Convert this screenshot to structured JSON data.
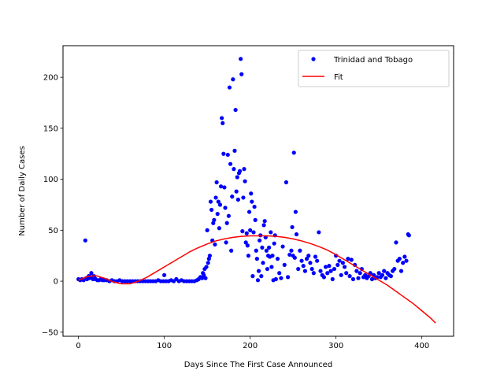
{
  "chart_data": {
    "type": "scatter",
    "xlabel": "Days Since The First Case Announced",
    "ylabel": "Number of Daily Cases",
    "xlim": [
      -18,
      437
    ],
    "ylim": [
      -54,
      231
    ],
    "xticks": [
      0,
      100,
      200,
      300,
      400
    ],
    "yticks": [
      -50,
      0,
      50,
      100,
      150,
      200
    ],
    "grid": false,
    "legend": "top-right",
    "series": [
      {
        "name": "Trinidad and Tobago",
        "kind": "markers",
        "color": "#0000ff",
        "points": [
          [
            0,
            2
          ],
          [
            2,
            1
          ],
          [
            4,
            2
          ],
          [
            6,
            1
          ],
          [
            8,
            40
          ],
          [
            9,
            3
          ],
          [
            10,
            2
          ],
          [
            12,
            5
          ],
          [
            13,
            3
          ],
          [
            14,
            4
          ],
          [
            15,
            8
          ],
          [
            16,
            3
          ],
          [
            17,
            2
          ],
          [
            18,
            5
          ],
          [
            19,
            3
          ],
          [
            20,
            2
          ],
          [
            22,
            1
          ],
          [
            24,
            1
          ],
          [
            26,
            2
          ],
          [
            28,
            1
          ],
          [
            30,
            1
          ],
          [
            33,
            1
          ],
          [
            36,
            0
          ],
          [
            39,
            1
          ],
          [
            42,
            0
          ],
          [
            45,
            0
          ],
          [
            48,
            1
          ],
          [
            51,
            0
          ],
          [
            54,
            0
          ],
          [
            57,
            0
          ],
          [
            60,
            0
          ],
          [
            63,
            0
          ],
          [
            66,
            0
          ],
          [
            69,
            0
          ],
          [
            72,
            0
          ],
          [
            75,
            0
          ],
          [
            78,
            0
          ],
          [
            81,
            0
          ],
          [
            84,
            0
          ],
          [
            87,
            0
          ],
          [
            90,
            0
          ],
          [
            93,
            1
          ],
          [
            96,
            0
          ],
          [
            99,
            0
          ],
          [
            100,
            6
          ],
          [
            102,
            0
          ],
          [
            105,
            0
          ],
          [
            108,
            1
          ],
          [
            111,
            0
          ],
          [
            114,
            2
          ],
          [
            117,
            0
          ],
          [
            120,
            1
          ],
          [
            123,
            0
          ],
          [
            126,
            0
          ],
          [
            129,
            0
          ],
          [
            132,
            0
          ],
          [
            135,
            0
          ],
          [
            138,
            1
          ],
          [
            140,
            2
          ],
          [
            142,
            4
          ],
          [
            144,
            3
          ],
          [
            145,
            8
          ],
          [
            146,
            6
          ],
          [
            147,
            12
          ],
          [
            148,
            3
          ],
          [
            149,
            14
          ],
          [
            150,
            50
          ],
          [
            151,
            18
          ],
          [
            152,
            22
          ],
          [
            153,
            25
          ],
          [
            154,
            78
          ],
          [
            155,
            70
          ],
          [
            156,
            40
          ],
          [
            157,
            57
          ],
          [
            158,
            60
          ],
          [
            159,
            36
          ],
          [
            160,
            82
          ],
          [
            161,
            97
          ],
          [
            162,
            66
          ],
          [
            163,
            78
          ],
          [
            164,
            52
          ],
          [
            165,
            75
          ],
          [
            166,
            93
          ],
          [
            167,
            160
          ],
          [
            168,
            155
          ],
          [
            169,
            125
          ],
          [
            170,
            92
          ],
          [
            171,
            72
          ],
          [
            172,
            38
          ],
          [
            173,
            57
          ],
          [
            174,
            124
          ],
          [
            175,
            64
          ],
          [
            176,
            190
          ],
          [
            177,
            115
          ],
          [
            178,
            30
          ],
          [
            179,
            83
          ],
          [
            180,
            198
          ],
          [
            181,
            110
          ],
          [
            182,
            128
          ],
          [
            183,
            168
          ],
          [
            184,
            88
          ],
          [
            185,
            102
          ],
          [
            186,
            80
          ],
          [
            187,
            106
          ],
          [
            188,
            108
          ],
          [
            189,
            218
          ],
          [
            190,
            203
          ],
          [
            191,
            49
          ],
          [
            192,
            82
          ],
          [
            193,
            110
          ],
          [
            194,
            98
          ],
          [
            195,
            38
          ],
          [
            196,
            47
          ],
          [
            197,
            35
          ],
          [
            198,
            25
          ],
          [
            199,
            68
          ],
          [
            200,
            50
          ],
          [
            201,
            86
          ],
          [
            202,
            78
          ],
          [
            203,
            5
          ],
          [
            204,
            48
          ],
          [
            205,
            73
          ],
          [
            206,
            60
          ],
          [
            207,
            30
          ],
          [
            208,
            22
          ],
          [
            209,
            1
          ],
          [
            210,
            10
          ],
          [
            211,
            40
          ],
          [
            212,
            45
          ],
          [
            213,
            5
          ],
          [
            214,
            33
          ],
          [
            215,
            18
          ],
          [
            216,
            55
          ],
          [
            217,
            59
          ],
          [
            218,
            43
          ],
          [
            219,
            30
          ],
          [
            220,
            12
          ],
          [
            221,
            25
          ],
          [
            222,
            33
          ],
          [
            223,
            24
          ],
          [
            224,
            48
          ],
          [
            225,
            14
          ],
          [
            226,
            25
          ],
          [
            227,
            1
          ],
          [
            228,
            37
          ],
          [
            229,
            45
          ],
          [
            230,
            2
          ],
          [
            232,
            22
          ],
          [
            234,
            8
          ],
          [
            236,
            3
          ],
          [
            238,
            34
          ],
          [
            240,
            16
          ],
          [
            242,
            97
          ],
          [
            244,
            4
          ],
          [
            246,
            26
          ],
          [
            248,
            30
          ],
          [
            249,
            53
          ],
          [
            250,
            25
          ],
          [
            251,
            126
          ],
          [
            252,
            23
          ],
          [
            253,
            68
          ],
          [
            254,
            46
          ],
          [
            256,
            12
          ],
          [
            258,
            30
          ],
          [
            260,
            20
          ],
          [
            262,
            15
          ],
          [
            264,
            10
          ],
          [
            266,
            22
          ],
          [
            268,
            25
          ],
          [
            270,
            18
          ],
          [
            272,
            12
          ],
          [
            274,
            8
          ],
          [
            276,
            24
          ],
          [
            278,
            20
          ],
          [
            280,
            48
          ],
          [
            282,
            10
          ],
          [
            284,
            6
          ],
          [
            286,
            4
          ],
          [
            288,
            14
          ],
          [
            290,
            8
          ],
          [
            292,
            15
          ],
          [
            294,
            10
          ],
          [
            296,
            2
          ],
          [
            298,
            12
          ],
          [
            300,
            25
          ],
          [
            302,
            16
          ],
          [
            304,
            20
          ],
          [
            306,
            6
          ],
          [
            308,
            18
          ],
          [
            310,
            14
          ],
          [
            312,
            8
          ],
          [
            314,
            22
          ],
          [
            316,
            5
          ],
          [
            318,
            21
          ],
          [
            320,
            2
          ],
          [
            322,
            16
          ],
          [
            324,
            10
          ],
          [
            326,
            3
          ],
          [
            328,
            8
          ],
          [
            330,
            12
          ],
          [
            332,
            4
          ],
          [
            334,
            6
          ],
          [
            336,
            3
          ],
          [
            338,
            5
          ],
          [
            340,
            8
          ],
          [
            342,
            2
          ],
          [
            344,
            6
          ],
          [
            346,
            3
          ],
          [
            348,
            4
          ],
          [
            350,
            8
          ],
          [
            352,
            4
          ],
          [
            354,
            6
          ],
          [
            356,
            10
          ],
          [
            358,
            3
          ],
          [
            360,
            8
          ],
          [
            362,
            6
          ],
          [
            364,
            5
          ],
          [
            366,
            10
          ],
          [
            368,
            12
          ],
          [
            370,
            38
          ],
          [
            372,
            20
          ],
          [
            374,
            22
          ],
          [
            376,
            10
          ],
          [
            378,
            18
          ],
          [
            380,
            24
          ],
          [
            382,
            20
          ],
          [
            384,
            46
          ],
          [
            385,
            45
          ]
        ]
      },
      {
        "name": "Fit",
        "kind": "line",
        "color": "#ff0000",
        "points": [
          [
            0,
            1
          ],
          [
            10,
            4.5
          ],
          [
            20,
            5.5
          ],
          [
            30,
            3
          ],
          [
            40,
            -0.5
          ],
          [
            50,
            -2.5
          ],
          [
            60,
            -2.5
          ],
          [
            70,
            0
          ],
          [
            80,
            4
          ],
          [
            90,
            9
          ],
          [
            100,
            14
          ],
          [
            110,
            19
          ],
          [
            120,
            24
          ],
          [
            130,
            29
          ],
          [
            140,
            33
          ],
          [
            150,
            36.5
          ],
          [
            160,
            39.5
          ],
          [
            170,
            41.5
          ],
          [
            180,
            43
          ],
          [
            190,
            44
          ],
          [
            200,
            44.5
          ],
          [
            210,
            44.5
          ],
          [
            220,
            44.5
          ],
          [
            230,
            44
          ],
          [
            240,
            43
          ],
          [
            250,
            41.5
          ],
          [
            260,
            39.5
          ],
          [
            270,
            37
          ],
          [
            280,
            34
          ],
          [
            290,
            30.5
          ],
          [
            300,
            26
          ],
          [
            310,
            21
          ],
          [
            320,
            16
          ],
          [
            330,
            11
          ],
          [
            340,
            6
          ],
          [
            350,
            1
          ],
          [
            360,
            -4
          ],
          [
            370,
            -10
          ],
          [
            380,
            -16
          ],
          [
            390,
            -22
          ],
          [
            400,
            -29
          ],
          [
            410,
            -36
          ],
          [
            416,
            -41
          ]
        ]
      }
    ]
  }
}
